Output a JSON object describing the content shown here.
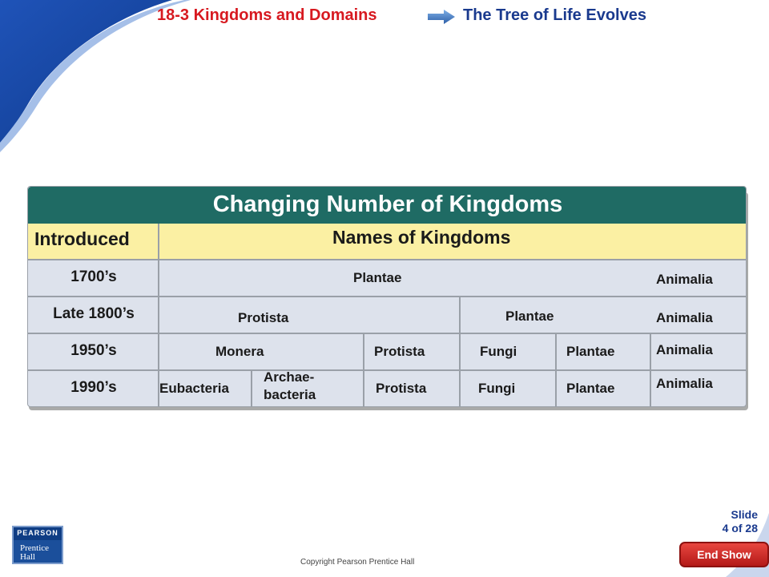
{
  "header": {
    "section": "18-3 Kingdoms and Domains",
    "lesson": "The Tree of Life Evolves"
  },
  "table": {
    "title": "Changing Number of Kingdoms",
    "col_introduced": "Introduced",
    "col_names": "Names of Kingdoms",
    "rows": [
      {
        "date": "1700’s",
        "cells": [
          "Plantae",
          "Animalia"
        ]
      },
      {
        "date": "Late 1800’s",
        "cells": [
          "Protista",
          "Plantae",
          "Animalia"
        ]
      },
      {
        "date": "1950’s",
        "cells": [
          "Monera",
          "Protista",
          "Fungi",
          "Plantae",
          "Animalia"
        ]
      },
      {
        "date": "1990’s",
        "cells": [
          "Eubacteria",
          "Archae-",
          "bacteria",
          "Protista",
          "Fungi",
          "Plantae",
          "Animalia"
        ]
      }
    ]
  },
  "footer": {
    "logo_line1": "PEARSON",
    "logo_line2": "Prentice",
    "logo_line3": "Hall",
    "copyright": "Copyright Pearson Prentice Hall",
    "slide_label": "Slide",
    "slide_position": "4 of 28",
    "end_show": "End Show"
  },
  "colors": {
    "header_section": "#d71920",
    "header_lesson": "#1a3a8e",
    "title_bar": "#1f6b64",
    "header_row": "#fbf0a3",
    "table_body": "#dde2ec",
    "end_show": "#c62a27"
  },
  "icons": {
    "header_arrow": "arrow-right-icon",
    "logo": "pearson-logo"
  }
}
